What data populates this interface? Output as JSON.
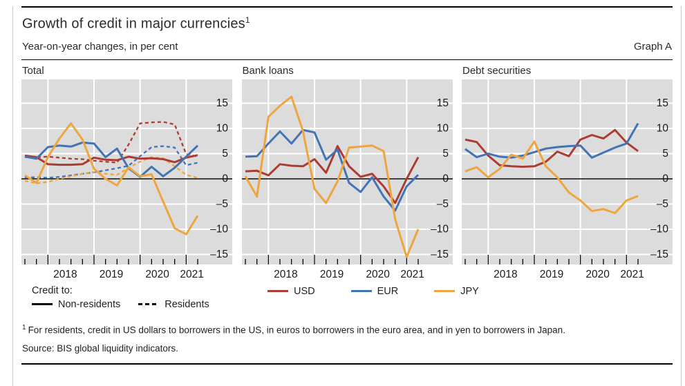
{
  "page": {
    "title": "Growth of credit in major currencies",
    "title_footnote_marker": "1",
    "subtitle": "Year-on-year changes, in per cent",
    "graph_label": "Graph A",
    "footnote_marker": "1",
    "footnote": "For residents, credit in US dollars to borrowers in the US, in euros to borrowers in the euro area, and in yen to borrowers in Japan.",
    "source": "Source: BIS global liquidity indicators."
  },
  "legend": {
    "credit_to_label": "Credit to:",
    "line_styles": [
      {
        "label": "Non-residents",
        "style": "solid"
      },
      {
        "label": "Residents",
        "style": "dashed"
      }
    ],
    "currencies": [
      {
        "label": "USD",
        "color": "#AC3B32"
      },
      {
        "label": "EUR",
        "color": "#4173B5"
      },
      {
        "label": "JPY",
        "color": "#EFA53D"
      }
    ]
  },
  "colors": {
    "panel_background": "#DCDCDC",
    "gridline": "#FFFFFF",
    "zero_line": "#000000",
    "usd": "#AC3B32",
    "eur": "#4173B5",
    "jpy": "#EFA53D"
  },
  "chart_data": [
    {
      "type": "line",
      "title": "Total",
      "x": [
        "2017-Q3",
        "2017-Q4",
        "2018-Q1",
        "2018-Q2",
        "2018-Q3",
        "2018-Q4",
        "2019-Q1",
        "2019-Q2",
        "2019-Q3",
        "2019-Q4",
        "2020-Q1",
        "2020-Q2",
        "2020-Q3",
        "2020-Q4",
        "2021-Q1",
        "2021-Q2"
      ],
      "year_labels": [
        {
          "label": "2018",
          "center": 3.5
        },
        {
          "label": "2019",
          "center": 7.5
        },
        {
          "label": "2020",
          "center": 11.5
        },
        {
          "label": "2021",
          "center": 14.5
        }
      ],
      "yticks": [
        15,
        10,
        5,
        0,
        -5,
        -10,
        -15
      ],
      "ylim": [
        -17,
        19
      ],
      "grid": true,
      "legend_position": "below",
      "series": [
        {
          "name": "USD",
          "credit_to": "Non-residents",
          "style": "solid",
          "color": "#AC3B32",
          "values": [
            4.6,
            4.3,
            2.9,
            2.8,
            2.8,
            2.9,
            4.2,
            3.8,
            3.7,
            4.4,
            4.0,
            4.1,
            3.9,
            3.3,
            4.2,
            4.7
          ]
        },
        {
          "name": "EUR",
          "credit_to": "Non-residents",
          "style": "solid",
          "color": "#4173B5",
          "values": [
            4.4,
            4.0,
            6.3,
            6.6,
            6.4,
            7.2,
            7.0,
            4.3,
            6.0,
            2.1,
            0.4,
            2.4,
            0.5,
            2.2,
            4.4,
            6.6
          ]
        },
        {
          "name": "JPY",
          "credit_to": "Non-residents",
          "style": "solid",
          "color": "#EFA53D",
          "values": [
            0.7,
            -0.8,
            4.3,
            8.0,
            11.0,
            7.8,
            2.0,
            0.0,
            -1.3,
            2.3,
            0.5,
            0.9,
            -4.5,
            -9.8,
            -11.0,
            -7.3
          ]
        },
        {
          "name": "USD",
          "credit_to": "Residents",
          "style": "dashed",
          "color": "#AC3B32",
          "values": [
            4.3,
            4.3,
            4.4,
            4.2,
            4.0,
            3.9,
            3.6,
            3.4,
            3.2,
            6.8,
            11.0,
            11.2,
            11.3,
            10.8,
            4.9,
            4.4
          ]
        },
        {
          "name": "EUR",
          "credit_to": "Residents",
          "style": "dashed",
          "color": "#4173B5",
          "values": [
            0.3,
            0.3,
            0.2,
            0.4,
            0.7,
            1.0,
            1.3,
            1.7,
            2.1,
            2.6,
            4.5,
            6.3,
            6.5,
            6.2,
            2.7,
            3.2
          ]
        },
        {
          "name": "JPY",
          "credit_to": "Residents",
          "style": "dashed",
          "color": "#EFA53D",
          "values": [
            -0.4,
            -0.9,
            -0.6,
            0.0,
            0.5,
            1.0,
            1.4,
            1.0,
            0.8,
            2.2,
            3.4,
            4.3,
            4.1,
            2.5,
            0.8,
            0.2
          ]
        }
      ]
    },
    {
      "type": "line",
      "title": "Bank loans",
      "x": [
        "2017-Q3",
        "2017-Q4",
        "2018-Q1",
        "2018-Q2",
        "2018-Q3",
        "2018-Q4",
        "2019-Q1",
        "2019-Q2",
        "2019-Q3",
        "2019-Q4",
        "2020-Q1",
        "2020-Q2",
        "2020-Q3",
        "2020-Q4",
        "2021-Q1",
        "2021-Q2"
      ],
      "year_labels": [
        {
          "label": "2018",
          "center": 3.5
        },
        {
          "label": "2019",
          "center": 7.5
        },
        {
          "label": "2020",
          "center": 11.5
        },
        {
          "label": "2021",
          "center": 14.5
        }
      ],
      "yticks": [
        15,
        10,
        5,
        0,
        -5,
        -10,
        -15
      ],
      "ylim": [
        -17,
        19
      ],
      "grid": true,
      "series": [
        {
          "name": "USD",
          "credit_to": "Non-residents",
          "style": "solid",
          "color": "#AC3B32",
          "values": [
            1.5,
            1.6,
            0.7,
            2.9,
            2.6,
            2.5,
            3.9,
            1.2,
            6.5,
            2.5,
            0.4,
            1.0,
            -1.5,
            -4.8,
            0.0,
            4.3
          ]
        },
        {
          "name": "EUR",
          "credit_to": "Non-residents",
          "style": "solid",
          "color": "#4173B5",
          "values": [
            4.4,
            4.5,
            7.0,
            9.4,
            7.0,
            9.7,
            9.2,
            3.8,
            5.8,
            -0.8,
            -2.6,
            0.3,
            -3.5,
            -6.3,
            -1.5,
            0.8
          ]
        },
        {
          "name": "JPY",
          "credit_to": "Non-residents",
          "style": "solid",
          "color": "#EFA53D",
          "values": [
            0.5,
            -3.5,
            12.3,
            14.5,
            16.3,
            9.5,
            -2.0,
            -4.8,
            -0.5,
            6.2,
            6.4,
            6.6,
            5.5,
            -8.0,
            -15.5,
            -10.0
          ]
        }
      ]
    },
    {
      "type": "line",
      "title": "Debt securities",
      "x": [
        "2017-Q3",
        "2017-Q4",
        "2018-Q1",
        "2018-Q2",
        "2018-Q3",
        "2018-Q4",
        "2019-Q1",
        "2019-Q2",
        "2019-Q3",
        "2019-Q4",
        "2020-Q1",
        "2020-Q2",
        "2020-Q3",
        "2020-Q4",
        "2021-Q1",
        "2021-Q2"
      ],
      "year_labels": [
        {
          "label": "2018",
          "center": 3.5
        },
        {
          "label": "2019",
          "center": 7.5
        },
        {
          "label": "2020",
          "center": 11.5
        },
        {
          "label": "2021",
          "center": 14.5
        }
      ],
      "yticks": [
        15,
        10,
        5,
        0,
        -5,
        -10,
        -15
      ],
      "ylim": [
        -17,
        19
      ],
      "grid": true,
      "series": [
        {
          "name": "USD",
          "credit_to": "Non-residents",
          "style": "solid",
          "color": "#AC3B32",
          "values": [
            7.8,
            7.3,
            4.6,
            2.7,
            2.5,
            2.4,
            2.5,
            3.4,
            5.4,
            4.5,
            7.8,
            8.7,
            8.0,
            9.7,
            7.2,
            5.5
          ]
        },
        {
          "name": "EUR",
          "credit_to": "Non-residents",
          "style": "solid",
          "color": "#4173B5",
          "values": [
            5.9,
            4.3,
            5.0,
            4.4,
            4.2,
            4.6,
            5.3,
            6.0,
            6.3,
            6.5,
            6.6,
            4.2,
            5.2,
            6.2,
            7.0,
            11.0
          ]
        },
        {
          "name": "JPY",
          "credit_to": "Non-residents",
          "style": "solid",
          "color": "#EFA53D",
          "values": [
            1.5,
            2.3,
            0.3,
            2.0,
            4.8,
            4.0,
            7.4,
            2.5,
            0.3,
            -2.7,
            -4.3,
            -6.4,
            -6.0,
            -6.8,
            -4.3,
            -3.4
          ]
        }
      ]
    }
  ]
}
